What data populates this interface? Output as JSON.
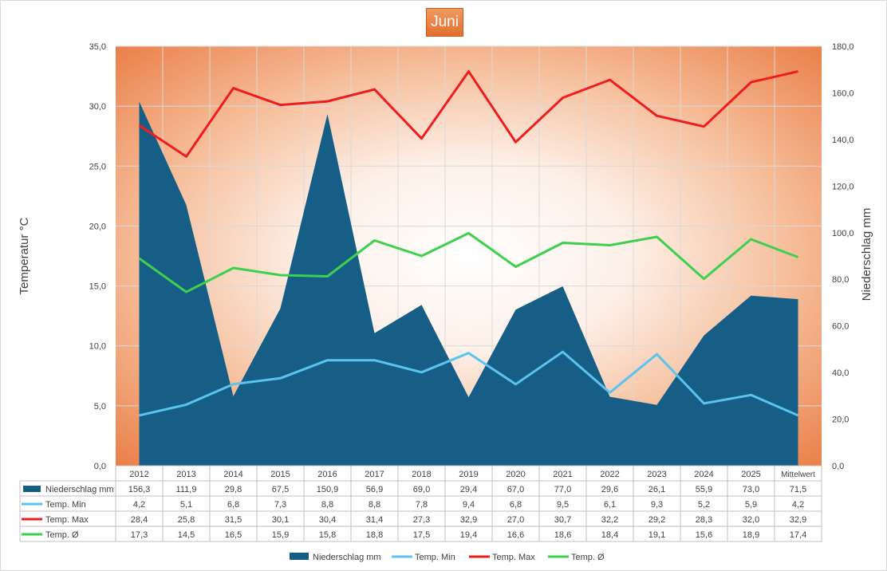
{
  "chart_data": {
    "type": "area",
    "title": "Juni",
    "categories": [
      "2012",
      "2013",
      "2014",
      "2015",
      "2016",
      "2017",
      "2018",
      "2019",
      "2020",
      "2021",
      "2022",
      "2023",
      "2024",
      "2025",
      "Mittelwert"
    ],
    "y_left": {
      "label": "Temperatur °C",
      "ylim": [
        0,
        35
      ],
      "ticks": [
        "0,0",
        "5,0",
        "10,0",
        "15,0",
        "20,0",
        "25,0",
        "30,0",
        "35,0"
      ]
    },
    "y_right": {
      "label": "Niederschlag mm",
      "ylim": [
        0,
        180
      ],
      "ticks": [
        "0,0",
        "20,0",
        "40,0",
        "60,0",
        "80,0",
        "100,0",
        "120,0",
        "140,0",
        "160,0",
        "180,0"
      ]
    },
    "grid": true,
    "legend_position": "bottom",
    "series": [
      {
        "name": "Niederschlag mm",
        "type": "area",
        "axis": "right",
        "color": "#175e86",
        "values": [
          156.3,
          111.9,
          29.8,
          67.5,
          150.9,
          56.9,
          69.0,
          29.4,
          67.0,
          77.0,
          29.6,
          26.1,
          55.9,
          73.0,
          71.5
        ],
        "labels": [
          "156,3",
          "111,9",
          "29,8",
          "67,5",
          "150,9",
          "56,9",
          "69,0",
          "29,4",
          "67,0",
          "77,0",
          "29,6",
          "26,1",
          "55,9",
          "73,0",
          "71,5"
        ]
      },
      {
        "name": "Temp. Min",
        "type": "line",
        "axis": "left",
        "color": "#5bc3ef",
        "values": [
          4.2,
          5.1,
          6.8,
          7.3,
          8.8,
          8.8,
          7.8,
          9.4,
          6.8,
          9.5,
          6.1,
          9.3,
          5.2,
          5.9,
          4.2
        ],
        "labels": [
          "4,2",
          "5,1",
          "6,8",
          "7,3",
          "8,8",
          "8,8",
          "7,8",
          "9,4",
          "6,8",
          "9,5",
          "6,1",
          "9,3",
          "5,2",
          "5,9",
          "4,2"
        ]
      },
      {
        "name": "Temp. Max",
        "type": "line",
        "axis": "left",
        "color": "#ee1c1c",
        "values": [
          28.4,
          25.8,
          31.5,
          30.1,
          30.4,
          31.4,
          27.3,
          32.9,
          27.0,
          30.7,
          32.2,
          29.2,
          28.3,
          32.0,
          32.9
        ],
        "labels": [
          "28,4",
          "25,8",
          "31,5",
          "30,1",
          "30,4",
          "31,4",
          "27,3",
          "32,9",
          "27,0",
          "30,7",
          "32,2",
          "29,2",
          "28,3",
          "32,0",
          "32,9"
        ]
      },
      {
        "name": "Temp. Ø",
        "type": "line",
        "axis": "left",
        "color": "#3fcf4f",
        "values": [
          17.3,
          14.5,
          16.5,
          15.9,
          15.8,
          18.8,
          17.5,
          19.4,
          16.6,
          18.6,
          18.4,
          19.1,
          15.6,
          18.9,
          17.4
        ],
        "labels": [
          "17,3",
          "14,5",
          "16,5",
          "15,9",
          "15,8",
          "18,8",
          "17,5",
          "19,4",
          "16,6",
          "18,6",
          "18,4",
          "19,1",
          "15,6",
          "18,9",
          "17,4"
        ]
      }
    ]
  }
}
